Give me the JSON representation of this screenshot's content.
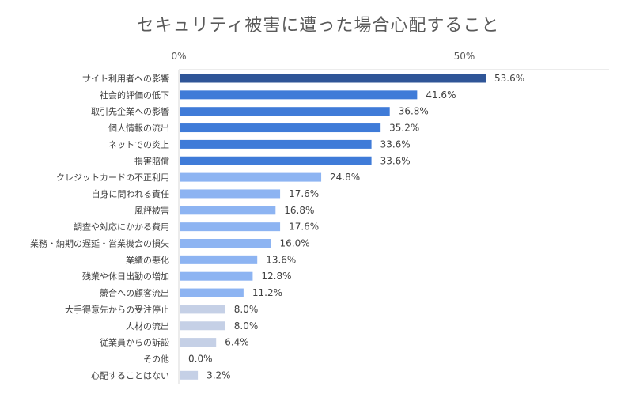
{
  "chart_data": {
    "type": "bar",
    "orientation": "horizontal",
    "title": "セキュリティ被害に遭った場合心配すること",
    "xlim": [
      0,
      60
    ],
    "x_ticks": [
      {
        "value": 0,
        "label": "0%"
      },
      {
        "value": 50,
        "label": "50%"
      }
    ],
    "tick_position": "top",
    "value_labels": true,
    "categories": [
      "サイト利用者への影響",
      "社会的評価の低下",
      "取引先企業への影響",
      "個人情報の流出",
      "ネットでの炎上",
      "損害賠償",
      "クレジットカードの不正利用",
      "自身に問われる責任",
      "風評被害",
      "調査や対応にかかる費用",
      "業務・納期の遅延・営業機会の損失",
      "業績の悪化",
      "残業や休日出勤の増加",
      "競合への顧客流出",
      "大手得意先からの受注停止",
      "人材の流出",
      "従業員からの訴訟",
      "その他",
      "心配することはない"
    ],
    "values": [
      53.6,
      41.6,
      36.8,
      35.2,
      33.6,
      33.6,
      24.8,
      17.6,
      16.8,
      17.6,
      16.0,
      13.6,
      12.8,
      11.2,
      8.0,
      8.0,
      6.4,
      0.0,
      3.2
    ],
    "value_labels_text": [
      "53.6%",
      "41.6%",
      "36.8%",
      "35.2%",
      "33.6%",
      "33.6%",
      "24.8%",
      "17.6%",
      "16.8%",
      "17.6%",
      "16.0%",
      "13.6%",
      "12.8%",
      "11.2%",
      "8.0%",
      "8.0%",
      "6.4%",
      "0.0%",
      "3.2%"
    ],
    "bar_colors": [
      "#2f5597",
      "#3f7bd8",
      "#3f7bd8",
      "#3f7bd8",
      "#3f7bd8",
      "#3f7bd8",
      "#8db4f2",
      "#8db4f2",
      "#8db4f2",
      "#8db4f2",
      "#8db4f2",
      "#8db4f2",
      "#8db4f2",
      "#8db4f2",
      "#c5d0e6",
      "#c5d0e6",
      "#c5d0e6",
      "#c5d0e6",
      "#c5d0e6"
    ],
    "grid": false
  }
}
